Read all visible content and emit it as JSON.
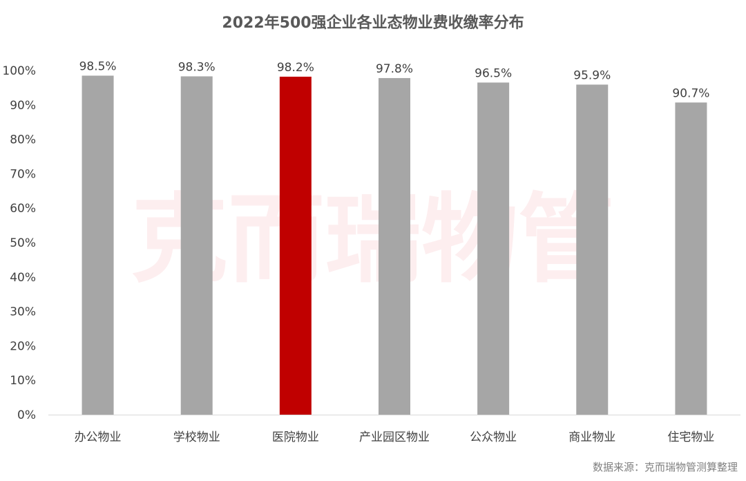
{
  "chart_data": {
    "type": "bar",
    "title": "2022年500强企业各业态物业费收缴率分布",
    "categories": [
      "办公物业",
      "学校物业",
      "医院物业",
      "产业园区物业",
      "公众物业",
      "商业物业",
      "住宅物业"
    ],
    "values": [
      98.5,
      98.3,
      98.2,
      97.8,
      96.5,
      95.9,
      90.7
    ],
    "value_labels": [
      "98.5%",
      "98.3%",
      "98.2%",
      "97.8%",
      "96.5%",
      "95.9%",
      "90.7%"
    ],
    "highlight_index": 2,
    "ylim": [
      0,
      100
    ],
    "yticks": [
      "0%",
      "10%",
      "20%",
      "30%",
      "40%",
      "50%",
      "60%",
      "70%",
      "80%",
      "90%",
      "100%"
    ],
    "xlabel": "",
    "ylabel": "",
    "grid": false,
    "legend": "none",
    "colors": {
      "bar": "#a6a6a6",
      "highlight": "#c00000",
      "axis": "#d9d9d9"
    }
  },
  "watermark": "克而瑞物管",
  "source": "数据来源：克而瑞物管测算整理"
}
